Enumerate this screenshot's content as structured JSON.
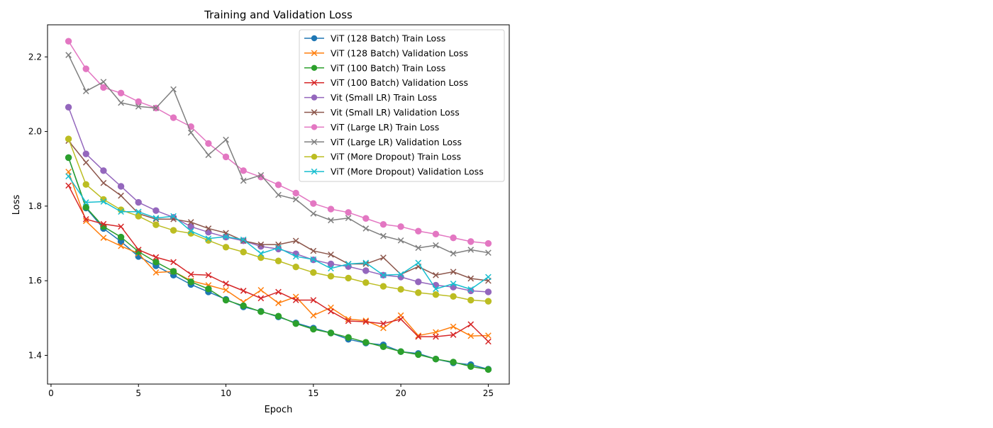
{
  "chart_data": {
    "type": "line",
    "title": "Training and Validation Loss",
    "xlabel": "Epoch",
    "ylabel": "Loss",
    "xlim": [
      -0.2,
      26.2
    ],
    "ylim": [
      1.323,
      2.286
    ],
    "xticks": [
      0,
      5,
      10,
      15,
      20,
      25
    ],
    "xtick_labels": [
      "0",
      "5",
      "10",
      "15",
      "20",
      "25"
    ],
    "yticks": [
      1.4,
      1.6,
      1.8,
      2.0,
      2.2
    ],
    "ytick_labels": [
      "1.4",
      "1.6",
      "1.8",
      "2.0",
      "2.2"
    ],
    "grid": false,
    "legend_position": "top-right",
    "x": [
      1,
      2,
      3,
      4,
      5,
      6,
      7,
      8,
      9,
      10,
      11,
      12,
      13,
      14,
      15,
      16,
      17,
      18,
      19,
      20,
      21,
      22,
      23,
      24,
      25
    ],
    "series": [
      {
        "name": "ViT (128 Batch) Train Loss",
        "color": "#1f77b4",
        "marker": "circle",
        "values": [
          1.93,
          1.795,
          1.74,
          1.705,
          1.665,
          1.64,
          1.615,
          1.59,
          1.57,
          1.55,
          1.53,
          1.518,
          1.503,
          1.487,
          1.473,
          1.46,
          1.443,
          1.433,
          1.428,
          1.41,
          1.405,
          1.39,
          1.38,
          1.375,
          1.363
        ]
      },
      {
        "name": "ViT (128 Batch) Validation Loss",
        "color": "#ff7f0e",
        "marker": "x",
        "values": [
          1.892,
          1.76,
          1.715,
          1.693,
          1.673,
          1.622,
          1.625,
          1.6,
          1.588,
          1.575,
          1.543,
          1.575,
          1.54,
          1.557,
          1.507,
          1.528,
          1.497,
          1.493,
          1.473,
          1.507,
          1.453,
          1.462,
          1.477,
          1.452,
          1.453
        ]
      },
      {
        "name": "ViT (100 Batch) Train Loss",
        "color": "#2ca02c",
        "marker": "circle",
        "values": [
          1.93,
          1.797,
          1.745,
          1.717,
          1.678,
          1.65,
          1.625,
          1.597,
          1.578,
          1.548,
          1.533,
          1.517,
          1.505,
          1.485,
          1.47,
          1.46,
          1.448,
          1.435,
          1.423,
          1.41,
          1.402,
          1.39,
          1.382,
          1.37,
          1.362
        ]
      },
      {
        "name": "ViT (100 Batch) Validation Loss",
        "color": "#d62728",
        "marker": "x",
        "values": [
          1.855,
          1.765,
          1.752,
          1.745,
          1.683,
          1.663,
          1.65,
          1.617,
          1.615,
          1.592,
          1.573,
          1.553,
          1.57,
          1.548,
          1.548,
          1.518,
          1.492,
          1.49,
          1.485,
          1.497,
          1.45,
          1.45,
          1.455,
          1.483,
          1.437
        ]
      },
      {
        "name": "Vit (Small LR) Train Loss",
        "color": "#9467bd",
        "marker": "circle",
        "values": [
          2.065,
          1.94,
          1.895,
          1.853,
          1.81,
          1.788,
          1.77,
          1.745,
          1.73,
          1.717,
          1.707,
          1.692,
          1.685,
          1.672,
          1.656,
          1.645,
          1.638,
          1.627,
          1.615,
          1.61,
          1.597,
          1.588,
          1.583,
          1.573,
          1.57
        ]
      },
      {
        "name": "Vit (Small LR) Validation Loss",
        "color": "#8c564b",
        "marker": "x",
        "values": [
          1.975,
          1.917,
          1.862,
          1.828,
          1.78,
          1.765,
          1.765,
          1.757,
          1.74,
          1.728,
          1.707,
          1.697,
          1.697,
          1.707,
          1.68,
          1.67,
          1.645,
          1.645,
          1.662,
          1.617,
          1.638,
          1.615,
          1.624,
          1.606,
          1.6
        ]
      },
      {
        "name": "ViT (Large LR) Train Loss",
        "color": "#e377c2",
        "marker": "circle",
        "values": [
          2.242,
          2.168,
          2.118,
          2.103,
          2.08,
          2.063,
          2.037,
          2.013,
          1.968,
          1.932,
          1.895,
          1.878,
          1.857,
          1.835,
          1.807,
          1.792,
          1.783,
          1.767,
          1.751,
          1.745,
          1.733,
          1.725,
          1.715,
          1.705,
          1.7
        ]
      },
      {
        "name": "ViT (Large LR) Validation Loss",
        "color": "#7f7f7f",
        "marker": "x",
        "values": [
          2.205,
          2.108,
          2.133,
          2.077,
          2.067,
          2.063,
          2.113,
          1.997,
          1.937,
          1.978,
          1.868,
          1.883,
          1.83,
          1.818,
          1.78,
          1.762,
          1.768,
          1.74,
          1.72,
          1.708,
          1.688,
          1.695,
          1.673,
          1.683,
          1.675
        ]
      },
      {
        "name": "ViT (More Dropout) Train Loss",
        "color": "#bcbd22",
        "marker": "circle",
        "values": [
          1.98,
          1.858,
          1.818,
          1.79,
          1.773,
          1.75,
          1.735,
          1.727,
          1.708,
          1.69,
          1.677,
          1.662,
          1.653,
          1.637,
          1.622,
          1.612,
          1.607,
          1.595,
          1.585,
          1.577,
          1.568,
          1.563,
          1.558,
          1.548,
          1.545
        ]
      },
      {
        "name": "ViT (More Dropout) Validation Loss",
        "color": "#17becf",
        "marker": "x",
        "values": [
          1.88,
          1.81,
          1.812,
          1.785,
          1.785,
          1.768,
          1.773,
          1.733,
          1.713,
          1.718,
          1.71,
          1.673,
          1.688,
          1.665,
          1.657,
          1.633,
          1.645,
          1.648,
          1.615,
          1.617,
          1.648,
          1.578,
          1.592,
          1.577,
          1.61
        ]
      }
    ]
  }
}
